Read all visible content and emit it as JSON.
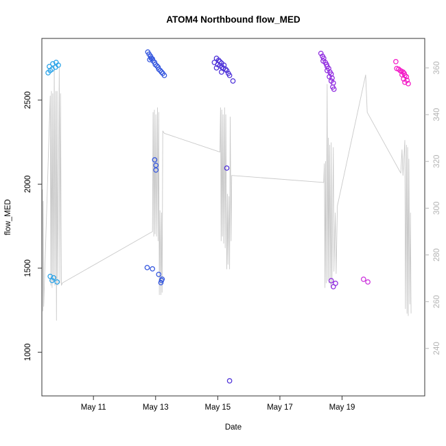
{
  "chart_data": {
    "type": "scatter",
    "title": "ATOM4 Northbound flow_MED",
    "xlabel": "Date",
    "ylabel": "flow_MED",
    "grid": false,
    "legend": "none",
    "x_axis": {
      "label": "Date",
      "tick_labels": [
        "May 11",
        "May 13",
        "May 15",
        "May 17",
        "May 19"
      ],
      "tick_days": [
        11,
        13,
        15,
        17,
        19
      ],
      "domain": [
        9.34,
        21.66
      ]
    },
    "y_left": {
      "label": "flow_MED",
      "tick_labels": [
        "1000",
        "1500",
        "2000",
        "2500"
      ],
      "tick_values": [
        1000,
        1500,
        2000,
        2500
      ],
      "domain": [
        740,
        2867
      ],
      "color": "#000000"
    },
    "y_right": {
      "tick_labels": [
        "240",
        "260",
        "280",
        "300",
        "320",
        "340",
        "360"
      ],
      "tick_values": [
        240,
        260,
        280,
        300,
        320,
        340,
        360
      ],
      "domain": [
        219.7,
        372.6
      ],
      "color": "#b4b4b4"
    },
    "line_series": {
      "name": "right-axis-trace",
      "axis": "right",
      "color": "#c9c9c9",
      "points": [
        [
          9.36,
          308
        ],
        [
          9.37,
          256
        ],
        [
          9.385,
          303
        ],
        [
          9.4,
          258
        ],
        [
          9.61,
          348
        ],
        [
          9.63,
          267
        ],
        [
          9.65,
          350
        ],
        [
          9.67,
          266
        ],
        [
          9.69,
          349
        ],
        [
          9.71,
          268
        ],
        [
          9.74,
          361
        ],
        [
          9.76,
          267
        ],
        [
          9.79,
          350
        ],
        [
          9.81,
          252
        ],
        [
          9.83,
          350
        ],
        [
          9.85,
          267
        ],
        [
          9.9,
          360
        ],
        [
          9.92,
          268
        ],
        [
          9.94,
          349
        ],
        [
          9.97,
          267
        ],
        [
          10.0,
          268
        ],
        [
          12.9,
          290
        ],
        [
          12.92,
          341
        ],
        [
          12.94,
          288
        ],
        [
          12.96,
          342
        ],
        [
          12.98,
          289
        ],
        [
          13.01,
          340
        ],
        [
          13.03,
          288
        ],
        [
          13.06,
          343
        ],
        [
          13.08,
          286
        ],
        [
          13.1,
          341
        ],
        [
          13.12,
          263
        ],
        [
          13.14,
          299
        ],
        [
          13.17,
          263
        ],
        [
          13.19,
          298
        ],
        [
          13.21,
          264
        ],
        [
          13.23,
          333
        ],
        [
          13.28,
          332
        ],
        [
          15.07,
          324
        ],
        [
          15.09,
          343
        ],
        [
          15.11,
          286
        ],
        [
          15.13,
          342
        ],
        [
          15.15,
          288
        ],
        [
          15.17,
          340
        ],
        [
          15.19,
          285
        ],
        [
          15.22,
          343
        ],
        [
          15.24,
          283
        ],
        [
          15.26,
          340
        ],
        [
          15.29,
          274
        ],
        [
          15.31,
          306
        ],
        [
          15.33,
          276
        ],
        [
          15.36,
          305
        ],
        [
          15.38,
          274
        ],
        [
          15.4,
          339
        ],
        [
          15.43,
          286
        ],
        [
          15.45,
          314
        ],
        [
          18.41,
          311
        ],
        [
          18.43,
          319
        ],
        [
          18.45,
          266
        ],
        [
          18.47,
          320
        ],
        [
          18.49,
          268
        ],
        [
          18.52,
          353
        ],
        [
          18.54,
          269
        ],
        [
          18.56,
          330
        ],
        [
          18.58,
          268
        ],
        [
          18.6,
          327
        ],
        [
          18.63,
          267
        ],
        [
          18.65,
          328
        ],
        [
          18.67,
          266
        ],
        [
          18.72,
          326
        ],
        [
          18.74,
          273
        ],
        [
          18.78,
          298
        ],
        [
          18.81,
          272
        ],
        [
          18.85,
          301
        ],
        [
          19.76,
          357
        ],
        [
          19.81,
          341
        ],
        [
          20.89,
          315
        ],
        [
          20.93,
          325
        ],
        [
          20.96,
          314
        ],
        [
          21.02,
          329
        ],
        [
          21.04,
          257
        ],
        [
          21.07,
          327
        ],
        [
          21.09,
          255
        ],
        [
          21.11,
          326
        ],
        [
          21.13,
          254
        ],
        [
          21.15,
          321
        ],
        [
          21.18,
          259
        ],
        [
          21.2,
          298
        ],
        [
          21.22,
          255
        ]
      ]
    },
    "point_series": [
      {
        "name": "group-may10",
        "color": "#28A2E8",
        "points": [
          [
            9.58,
            2700
          ],
          [
            9.69,
            2716
          ],
          [
            9.8,
            2724
          ],
          [
            9.67,
            2684
          ],
          [
            9.78,
            2696
          ],
          [
            9.61,
            2676
          ],
          [
            9.87,
            2708
          ],
          [
            9.54,
            2663
          ],
          [
            9.61,
            1451
          ],
          [
            9.72,
            1443
          ],
          [
            9.67,
            1427
          ],
          [
            9.83,
            1418
          ]
        ]
      },
      {
        "name": "group-may13",
        "color": "#3053DE",
        "points": [
          [
            12.75,
            2786
          ],
          [
            12.79,
            2773
          ],
          [
            12.84,
            2761
          ],
          [
            12.86,
            2749
          ],
          [
            12.81,
            2741
          ],
          [
            12.9,
            2745
          ],
          [
            12.92,
            2733
          ],
          [
            12.97,
            2724
          ],
          [
            12.99,
            2712
          ],
          [
            13.04,
            2704
          ],
          [
            13.08,
            2696
          ],
          [
            13.1,
            2684
          ],
          [
            13.15,
            2676
          ],
          [
            13.19,
            2667
          ],
          [
            13.23,
            2659
          ],
          [
            13.28,
            2647
          ],
          [
            12.97,
            2145
          ],
          [
            13.01,
            2112
          ],
          [
            13.01,
            2084
          ],
          [
            12.73,
            1504
          ],
          [
            12.9,
            1496
          ],
          [
            13.1,
            1463
          ],
          [
            13.21,
            1435
          ],
          [
            13.19,
            1427
          ],
          [
            13.17,
            1414
          ]
        ]
      },
      {
        "name": "group-may15",
        "color": "#4B2FD8",
        "points": [
          [
            14.96,
            2749
          ],
          [
            15.03,
            2737
          ],
          [
            15.07,
            2729
          ],
          [
            15.12,
            2720
          ],
          [
            15.0,
            2712
          ],
          [
            15.07,
            2704
          ],
          [
            15.14,
            2696
          ],
          [
            15.2,
            2708
          ],
          [
            15.18,
            2688
          ],
          [
            15.25,
            2684
          ],
          [
            15.29,
            2676
          ],
          [
            15.12,
            2667
          ],
          [
            15.34,
            2659
          ],
          [
            15.38,
            2647
          ],
          [
            15.49,
            2614
          ],
          [
            14.89,
            2724
          ],
          [
            14.96,
            2692
          ],
          [
            15.29,
            2096
          ],
          [
            15.38,
            830
          ]
        ]
      },
      {
        "name": "group-may18",
        "color": "#8E28DF",
        "points": [
          [
            18.32,
            2778
          ],
          [
            18.37,
            2761
          ],
          [
            18.41,
            2749
          ],
          [
            18.39,
            2733
          ],
          [
            18.46,
            2724
          ],
          [
            18.5,
            2712
          ],
          [
            18.52,
            2700
          ],
          [
            18.57,
            2688
          ],
          [
            18.52,
            2676
          ],
          [
            18.61,
            2667
          ],
          [
            18.65,
            2655
          ],
          [
            18.59,
            2639
          ],
          [
            18.68,
            2631
          ],
          [
            18.65,
            2614
          ],
          [
            18.72,
            2602
          ],
          [
            18.7,
            2578
          ],
          [
            18.74,
            2565
          ],
          [
            18.65,
            1426
          ],
          [
            18.79,
            1410
          ],
          [
            18.72,
            1390
          ]
        ]
      },
      {
        "name": "group-may19-pair",
        "color": "#CC30DC",
        "points": [
          [
            19.69,
            1434
          ],
          [
            19.83,
            1418
          ]
        ]
      },
      {
        "name": "group-may21",
        "color": "#F318C6",
        "points": [
          [
            20.73,
            2729
          ],
          [
            20.76,
            2688
          ],
          [
            20.82,
            2684
          ],
          [
            20.87,
            2676
          ],
          [
            20.91,
            2672
          ],
          [
            20.96,
            2667
          ],
          [
            21.0,
            2659
          ],
          [
            20.93,
            2651
          ],
          [
            21.02,
            2647
          ],
          [
            21.07,
            2639
          ],
          [
            20.98,
            2626
          ],
          [
            21.09,
            2618
          ],
          [
            21.02,
            2606
          ],
          [
            21.13,
            2598
          ]
        ]
      }
    ],
    "style": {
      "box_color": "#333333",
      "tick_color": "#333333",
      "title_color": "#000000",
      "marker": "open-circle"
    }
  }
}
